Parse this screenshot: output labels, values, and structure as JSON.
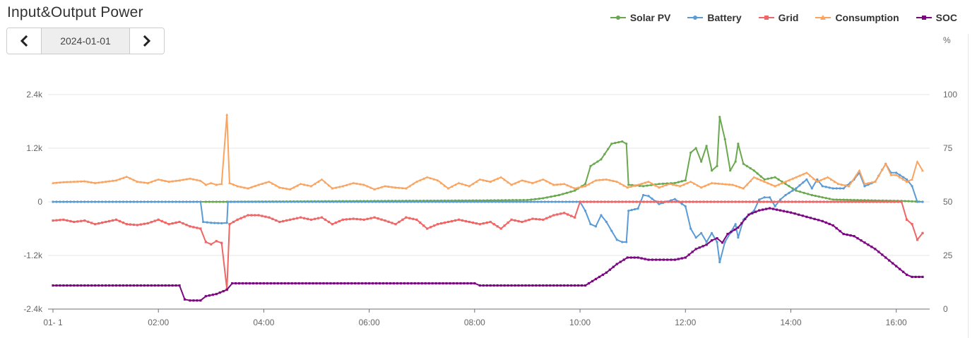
{
  "header": {
    "title": "Input&Output Power"
  },
  "date_nav": {
    "prev_icon": "chevron-left-icon",
    "date": "2024-01-01",
    "next_icon": "chevron-right-icon"
  },
  "legend": [
    {
      "name": "Solar PV",
      "color": "#6aa84f"
    },
    {
      "name": "Battery",
      "color": "#5b9bd5"
    },
    {
      "name": "Grid",
      "color": "#ee6666"
    },
    {
      "name": "Consumption",
      "color": "#f9a460"
    },
    {
      "name": "SOC",
      "color": "#7b0780"
    }
  ],
  "chart_data": {
    "type": "line",
    "x_unit": "time of day (h)",
    "x_range": [
      0.0,
      16.5
    ],
    "x_tick_labels": [
      "01- 1",
      "02:00",
      "04:00",
      "06:00",
      "08:00",
      "10:00",
      "12:00",
      "14:00",
      "16:00"
    ],
    "x_ticks": [
      0,
      2,
      4,
      6,
      8,
      10,
      12,
      14,
      16
    ],
    "y_left": {
      "min": -2400,
      "max": 2400,
      "ticks": [
        -2400,
        -1200,
        0,
        1200,
        2400
      ],
      "tick_labels": [
        "-2.4k",
        "-1.2k",
        "0",
        "1.2k",
        "2.4k"
      ]
    },
    "y_right": {
      "unit": "%",
      "min": 0,
      "max": 100,
      "ticks": [
        0,
        25,
        50,
        75,
        100
      ],
      "tick_labels": [
        "0",
        "25",
        "50",
        "75",
        "100"
      ]
    },
    "grid": "horizontal",
    "legend_position": "top-right",
    "series": [
      {
        "name": "Solar PV",
        "axis": "left",
        "color": "#6aa84f",
        "marker": "circle",
        "points": [
          [
            0,
            0
          ],
          [
            2.8,
            0
          ],
          [
            2.9,
            0
          ],
          [
            3.1,
            0
          ],
          [
            3.3,
            0
          ],
          [
            8.1,
            30
          ],
          [
            9.0,
            40
          ],
          [
            9.3,
            80
          ],
          [
            9.6,
            150
          ],
          [
            9.9,
            250
          ],
          [
            10.1,
            400
          ],
          [
            10.2,
            800
          ],
          [
            10.4,
            950
          ],
          [
            10.6,
            1300
          ],
          [
            10.8,
            1350
          ],
          [
            10.88,
            1300
          ],
          [
            10.92,
            380
          ],
          [
            11.2,
            350
          ],
          [
            11.5,
            400
          ],
          [
            11.8,
            420
          ],
          [
            12.0,
            480
          ],
          [
            12.1,
            1100
          ],
          [
            12.2,
            1200
          ],
          [
            12.3,
            900
          ],
          [
            12.4,
            1250
          ],
          [
            12.5,
            700
          ],
          [
            12.6,
            800
          ],
          [
            12.65,
            1900
          ],
          [
            12.75,
            1400
          ],
          [
            12.85,
            700
          ],
          [
            12.95,
            900
          ],
          [
            13.0,
            1300
          ],
          [
            13.1,
            850
          ],
          [
            13.3,
            700
          ],
          [
            13.5,
            500
          ],
          [
            13.7,
            550
          ],
          [
            13.9,
            400
          ],
          [
            14.1,
            250
          ],
          [
            14.4,
            150
          ],
          [
            14.6,
            100
          ],
          [
            14.8,
            50
          ],
          [
            15.2,
            40
          ],
          [
            15.6,
            30
          ],
          [
            16.1,
            20
          ],
          [
            16.5,
            0
          ]
        ]
      },
      {
        "name": "Battery",
        "axis": "left",
        "color": "#5b9bd5",
        "marker": "circle",
        "points": [
          [
            0,
            0
          ],
          [
            2.8,
            0
          ],
          [
            2.85,
            -450
          ],
          [
            3.0,
            -470
          ],
          [
            3.2,
            -480
          ],
          [
            3.3,
            -470
          ],
          [
            3.32,
            0
          ],
          [
            10.0,
            0
          ],
          [
            10.1,
            -200
          ],
          [
            10.2,
            -500
          ],
          [
            10.3,
            -550
          ],
          [
            10.4,
            -300
          ],
          [
            10.5,
            -450
          ],
          [
            10.6,
            -650
          ],
          [
            10.7,
            -850
          ],
          [
            10.8,
            -900
          ],
          [
            10.88,
            -900
          ],
          [
            10.92,
            -200
          ],
          [
            11.1,
            -150
          ],
          [
            11.2,
            150
          ],
          [
            11.3,
            130
          ],
          [
            11.5,
            -50
          ],
          [
            11.8,
            60
          ],
          [
            12.0,
            -100
          ],
          [
            12.1,
            -600
          ],
          [
            12.2,
            -800
          ],
          [
            12.3,
            -700
          ],
          [
            12.4,
            -900
          ],
          [
            12.5,
            -700
          ],
          [
            12.6,
            -900
          ],
          [
            12.65,
            -1350
          ],
          [
            12.75,
            -900
          ],
          [
            12.85,
            -700
          ],
          [
            12.95,
            -500
          ],
          [
            13.0,
            -800
          ],
          [
            13.1,
            -400
          ],
          [
            13.3,
            -200
          ],
          [
            13.4,
            50
          ],
          [
            13.5,
            100
          ],
          [
            13.6,
            100
          ],
          [
            13.7,
            -100
          ],
          [
            13.8,
            50
          ],
          [
            13.9,
            150
          ],
          [
            14.1,
            300
          ],
          [
            14.3,
            500
          ],
          [
            14.4,
            300
          ],
          [
            14.5,
            500
          ],
          [
            14.6,
            350
          ],
          [
            14.8,
            300
          ],
          [
            15.0,
            300
          ],
          [
            15.2,
            500
          ],
          [
            15.3,
            650
          ],
          [
            15.4,
            350
          ],
          [
            15.6,
            450
          ],
          [
            15.8,
            850
          ],
          [
            15.9,
            650
          ],
          [
            16.0,
            650
          ],
          [
            16.2,
            500
          ],
          [
            16.3,
            350
          ],
          [
            16.4,
            0
          ],
          [
            16.5,
            0
          ]
        ]
      },
      {
        "name": "Grid",
        "axis": "left",
        "color": "#ee6666",
        "marker": "square",
        "points": [
          [
            0,
            -420
          ],
          [
            0.2,
            -400
          ],
          [
            0.4,
            -450
          ],
          [
            0.6,
            -420
          ],
          [
            0.8,
            -500
          ],
          [
            1.0,
            -450
          ],
          [
            1.2,
            -400
          ],
          [
            1.4,
            -500
          ],
          [
            1.6,
            -520
          ],
          [
            1.8,
            -480
          ],
          [
            2.0,
            -400
          ],
          [
            2.2,
            -500
          ],
          [
            2.4,
            -450
          ],
          [
            2.6,
            -550
          ],
          [
            2.8,
            -600
          ],
          [
            2.9,
            -900
          ],
          [
            3.0,
            -950
          ],
          [
            3.1,
            -880
          ],
          [
            3.2,
            -920
          ],
          [
            3.3,
            -1950
          ],
          [
            3.35,
            -500
          ],
          [
            3.5,
            -400
          ],
          [
            3.7,
            -300
          ],
          [
            3.9,
            -300
          ],
          [
            4.1,
            -350
          ],
          [
            4.3,
            -450
          ],
          [
            4.5,
            -400
          ],
          [
            4.7,
            -350
          ],
          [
            4.9,
            -400
          ],
          [
            5.1,
            -350
          ],
          [
            5.3,
            -500
          ],
          [
            5.5,
            -400
          ],
          [
            5.7,
            -380
          ],
          [
            5.9,
            -400
          ],
          [
            6.1,
            -350
          ],
          [
            6.3,
            -420
          ],
          [
            6.5,
            -500
          ],
          [
            6.7,
            -350
          ],
          [
            6.9,
            -400
          ],
          [
            7.1,
            -600
          ],
          [
            7.3,
            -500
          ],
          [
            7.5,
            -450
          ],
          [
            7.7,
            -400
          ],
          [
            7.9,
            -450
          ],
          [
            8.1,
            -500
          ],
          [
            8.3,
            -450
          ],
          [
            8.5,
            -600
          ],
          [
            8.7,
            -400
          ],
          [
            8.9,
            -450
          ],
          [
            9.1,
            -380
          ],
          [
            9.3,
            -400
          ],
          [
            9.5,
            -300
          ],
          [
            9.7,
            -250
          ],
          [
            9.9,
            -350
          ],
          [
            10.0,
            0
          ],
          [
            16.1,
            0
          ],
          [
            16.2,
            -400
          ],
          [
            16.3,
            -500
          ],
          [
            16.4,
            -850
          ],
          [
            16.5,
            -700
          ]
        ]
      },
      {
        "name": "Consumption",
        "axis": "left",
        "color": "#f9a460",
        "marker": "triangle",
        "points": [
          [
            0,
            420
          ],
          [
            0.2,
            440
          ],
          [
            0.4,
            450
          ],
          [
            0.6,
            460
          ],
          [
            0.8,
            420
          ],
          [
            1.0,
            450
          ],
          [
            1.2,
            480
          ],
          [
            1.4,
            560
          ],
          [
            1.6,
            450
          ],
          [
            1.8,
            420
          ],
          [
            2.0,
            500
          ],
          [
            2.2,
            450
          ],
          [
            2.4,
            480
          ],
          [
            2.6,
            520
          ],
          [
            2.8,
            470
          ],
          [
            2.9,
            380
          ],
          [
            3.0,
            420
          ],
          [
            3.1,
            380
          ],
          [
            3.2,
            400
          ],
          [
            3.3,
            1950
          ],
          [
            3.35,
            420
          ],
          [
            3.5,
            350
          ],
          [
            3.7,
            300
          ],
          [
            3.9,
            380
          ],
          [
            4.1,
            450
          ],
          [
            4.3,
            320
          ],
          [
            4.5,
            280
          ],
          [
            4.7,
            400
          ],
          [
            4.9,
            350
          ],
          [
            5.1,
            500
          ],
          [
            5.3,
            300
          ],
          [
            5.5,
            350
          ],
          [
            5.7,
            420
          ],
          [
            5.9,
            380
          ],
          [
            6.1,
            280
          ],
          [
            6.3,
            350
          ],
          [
            6.5,
            320
          ],
          [
            6.7,
            300
          ],
          [
            6.9,
            450
          ],
          [
            7.1,
            550
          ],
          [
            7.3,
            480
          ],
          [
            7.5,
            300
          ],
          [
            7.7,
            420
          ],
          [
            7.9,
            350
          ],
          [
            8.1,
            500
          ],
          [
            8.3,
            450
          ],
          [
            8.5,
            550
          ],
          [
            8.7,
            380
          ],
          [
            8.9,
            480
          ],
          [
            9.1,
            420
          ],
          [
            9.3,
            500
          ],
          [
            9.5,
            380
          ],
          [
            9.7,
            400
          ],
          [
            9.9,
            300
          ],
          [
            10.1,
            350
          ],
          [
            10.3,
            480
          ],
          [
            10.5,
            500
          ],
          [
            10.7,
            450
          ],
          [
            10.9,
            320
          ],
          [
            11.1,
            380
          ],
          [
            11.3,
            450
          ],
          [
            11.5,
            320
          ],
          [
            11.7,
            400
          ],
          [
            11.9,
            350
          ],
          [
            12.1,
            450
          ],
          [
            12.3,
            320
          ],
          [
            12.5,
            420
          ],
          [
            12.7,
            400
          ],
          [
            12.9,
            380
          ],
          [
            13.1,
            300
          ],
          [
            13.3,
            550
          ],
          [
            13.5,
            450
          ],
          [
            13.7,
            350
          ],
          [
            13.9,
            450
          ],
          [
            14.1,
            550
          ],
          [
            14.3,
            650
          ],
          [
            14.5,
            450
          ],
          [
            14.7,
            550
          ],
          [
            14.9,
            400
          ],
          [
            15.1,
            350
          ],
          [
            15.3,
            700
          ],
          [
            15.4,
            400
          ],
          [
            15.6,
            450
          ],
          [
            15.8,
            850
          ],
          [
            15.9,
            600
          ],
          [
            16.0,
            600
          ],
          [
            16.2,
            450
          ],
          [
            16.3,
            500
          ],
          [
            16.4,
            900
          ],
          [
            16.5,
            700
          ]
        ]
      },
      {
        "name": "SOC",
        "axis": "right",
        "color": "#7b0780",
        "marker": "square",
        "points": [
          [
            0,
            11
          ],
          [
            2.4,
            11
          ],
          [
            2.5,
            4.5
          ],
          [
            2.6,
            4
          ],
          [
            2.8,
            4
          ],
          [
            2.9,
            6
          ],
          [
            3.1,
            7
          ],
          [
            3.3,
            9
          ],
          [
            3.4,
            12
          ],
          [
            8.0,
            12
          ],
          [
            8.1,
            11
          ],
          [
            10.1,
            11
          ],
          [
            10.3,
            14
          ],
          [
            10.5,
            17
          ],
          [
            10.7,
            21
          ],
          [
            10.9,
            24
          ],
          [
            11.1,
            24
          ],
          [
            11.3,
            23
          ],
          [
            11.8,
            23
          ],
          [
            12.0,
            24
          ],
          [
            12.2,
            28
          ],
          [
            12.4,
            30
          ],
          [
            12.5,
            32
          ],
          [
            12.6,
            33
          ],
          [
            12.7,
            31
          ],
          [
            12.8,
            35
          ],
          [
            13.0,
            38
          ],
          [
            13.2,
            44
          ],
          [
            13.4,
            46
          ],
          [
            13.6,
            47
          ],
          [
            13.8,
            46
          ],
          [
            14.0,
            45
          ],
          [
            14.3,
            43
          ],
          [
            14.6,
            41
          ],
          [
            14.8,
            39
          ],
          [
            15.0,
            35
          ],
          [
            15.2,
            34
          ],
          [
            15.4,
            31
          ],
          [
            15.6,
            28
          ],
          [
            15.8,
            24
          ],
          [
            16.0,
            20
          ],
          [
            16.2,
            16
          ],
          [
            16.3,
            15
          ],
          [
            16.5,
            15
          ]
        ]
      }
    ]
  }
}
